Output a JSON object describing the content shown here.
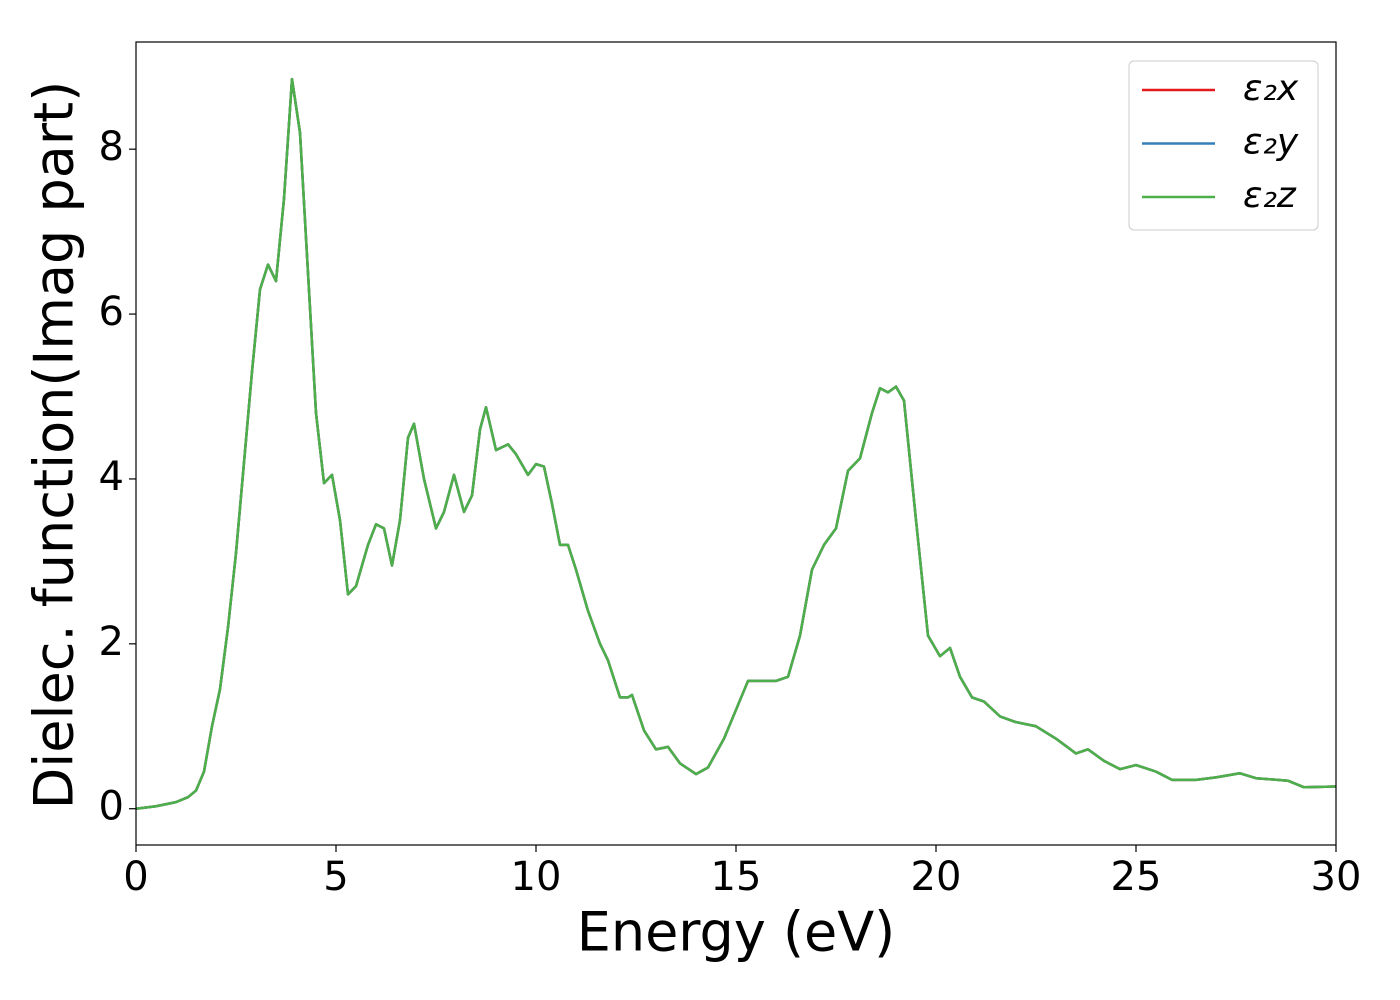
{
  "chart_data": {
    "type": "line",
    "xlabel": "Energy (eV)",
    "ylabel": "Dielec. function(Imag part)",
    "x": [
      0,
      0.5,
      1.0,
      1.3,
      1.5,
      1.7,
      1.9,
      2.1,
      2.3,
      2.5,
      2.7,
      2.9,
      3.1,
      3.3,
      3.5,
      3.7,
      3.9,
      4.1,
      4.3,
      4.5,
      4.7,
      4.9,
      5.1,
      5.3,
      5.5,
      5.8,
      6.0,
      6.2,
      6.4,
      6.6,
      6.8,
      6.95,
      7.2,
      7.5,
      7.7,
      7.95,
      8.2,
      8.4,
      8.6,
      8.75,
      9.0,
      9.3,
      9.5,
      9.8,
      10.0,
      10.2,
      10.4,
      10.6,
      10.8,
      11.0,
      11.3,
      11.6,
      11.8,
      12.1,
      12.3,
      12.4,
      12.7,
      13.0,
      13.3,
      13.6,
      14.0,
      14.3,
      14.7,
      15.0,
      15.3,
      15.6,
      16.0,
      16.3,
      16.6,
      16.9,
      17.2,
      17.5,
      17.8,
      18.1,
      18.4,
      18.6,
      18.8,
      19.0,
      19.2,
      19.5,
      19.8,
      20.1,
      20.35,
      20.6,
      20.9,
      21.2,
      21.6,
      22.0,
      22.5,
      23.0,
      23.5,
      23.8,
      24.2,
      24.6,
      25.0,
      25.5,
      25.9,
      26.5,
      27.0,
      27.6,
      28.0,
      28.8,
      29.2,
      30.0
    ],
    "series": [
      {
        "name": "ε₂x",
        "color": "#e41a1c",
        "values": [
          0,
          0.03,
          0.08,
          0.14,
          0.22,
          0.45,
          1.0,
          1.45,
          2.2,
          3.1,
          4.2,
          5.3,
          6.3,
          6.6,
          6.4,
          7.4,
          8.85,
          8.2,
          6.5,
          4.8,
          3.95,
          4.05,
          3.5,
          2.6,
          2.7,
          3.2,
          3.45,
          3.4,
          2.95,
          3.5,
          4.5,
          4.67,
          4.0,
          3.4,
          3.6,
          4.05,
          3.6,
          3.8,
          4.6,
          4.87,
          4.35,
          4.42,
          4.3,
          4.05,
          4.18,
          4.15,
          3.7,
          3.2,
          3.2,
          2.9,
          2.4,
          2.0,
          1.8,
          1.35,
          1.35,
          1.38,
          0.95,
          0.72,
          0.75,
          0.55,
          0.42,
          0.5,
          0.85,
          1.2,
          1.55,
          1.55,
          1.55,
          1.6,
          2.1,
          2.9,
          3.2,
          3.4,
          4.1,
          4.25,
          4.8,
          5.1,
          5.05,
          5.12,
          4.95,
          3.5,
          2.1,
          1.85,
          1.95,
          1.6,
          1.35,
          1.3,
          1.12,
          1.05,
          1.0,
          0.85,
          0.67,
          0.72,
          0.58,
          0.48,
          0.53,
          0.45,
          0.35,
          0.35,
          0.38,
          0.43,
          0.37,
          0.34,
          0.26,
          0.27
        ]
      },
      {
        "name": "ε₂y",
        "color": "#377eb8",
        "values": [
          0,
          0.03,
          0.08,
          0.14,
          0.22,
          0.45,
          1.0,
          1.45,
          2.2,
          3.1,
          4.2,
          5.3,
          6.3,
          6.6,
          6.4,
          7.4,
          8.85,
          8.2,
          6.5,
          4.8,
          3.95,
          4.05,
          3.5,
          2.6,
          2.7,
          3.2,
          3.45,
          3.4,
          2.95,
          3.5,
          4.5,
          4.67,
          4.0,
          3.4,
          3.6,
          4.05,
          3.6,
          3.8,
          4.6,
          4.87,
          4.35,
          4.42,
          4.3,
          4.05,
          4.18,
          4.15,
          3.7,
          3.2,
          3.2,
          2.9,
          2.4,
          2.0,
          1.8,
          1.35,
          1.35,
          1.38,
          0.95,
          0.72,
          0.75,
          0.55,
          0.42,
          0.5,
          0.85,
          1.2,
          1.55,
          1.55,
          1.55,
          1.6,
          2.1,
          2.9,
          3.2,
          3.4,
          4.1,
          4.25,
          4.8,
          5.1,
          5.05,
          5.12,
          4.95,
          3.5,
          2.1,
          1.85,
          1.95,
          1.6,
          1.35,
          1.3,
          1.12,
          1.05,
          1.0,
          0.85,
          0.67,
          0.72,
          0.58,
          0.48,
          0.53,
          0.45,
          0.35,
          0.35,
          0.38,
          0.43,
          0.37,
          0.34,
          0.26,
          0.27
        ]
      },
      {
        "name": "ε₂z",
        "color": "#4daf4a",
        "values": [
          0,
          0.03,
          0.08,
          0.14,
          0.22,
          0.45,
          1.0,
          1.45,
          2.2,
          3.1,
          4.2,
          5.3,
          6.3,
          6.6,
          6.4,
          7.4,
          8.85,
          8.2,
          6.5,
          4.8,
          3.95,
          4.05,
          3.5,
          2.6,
          2.7,
          3.2,
          3.45,
          3.4,
          2.95,
          3.5,
          4.5,
          4.67,
          4.0,
          3.4,
          3.6,
          4.05,
          3.6,
          3.8,
          4.6,
          4.87,
          4.35,
          4.42,
          4.3,
          4.05,
          4.18,
          4.15,
          3.7,
          3.2,
          3.2,
          2.9,
          2.4,
          2.0,
          1.8,
          1.35,
          1.35,
          1.38,
          0.95,
          0.72,
          0.75,
          0.55,
          0.42,
          0.5,
          0.85,
          1.2,
          1.55,
          1.55,
          1.55,
          1.6,
          2.1,
          2.9,
          3.2,
          3.4,
          4.1,
          4.25,
          4.8,
          5.1,
          5.05,
          5.12,
          4.95,
          3.5,
          2.1,
          1.85,
          1.95,
          1.6,
          1.35,
          1.3,
          1.12,
          1.05,
          1.0,
          0.85,
          0.67,
          0.72,
          0.58,
          0.48,
          0.53,
          0.45,
          0.35,
          0.35,
          0.38,
          0.43,
          0.37,
          0.34,
          0.26,
          0.27
        ]
      }
    ],
    "xlim": [
      0,
      30
    ],
    "xticks": [
      0,
      5,
      10,
      15,
      20,
      25,
      30
    ],
    "ylim": [
      -0.44,
      9.3
    ],
    "yticks": [
      0,
      2,
      4,
      6,
      8
    ],
    "grid": false,
    "legend": "upper right"
  }
}
